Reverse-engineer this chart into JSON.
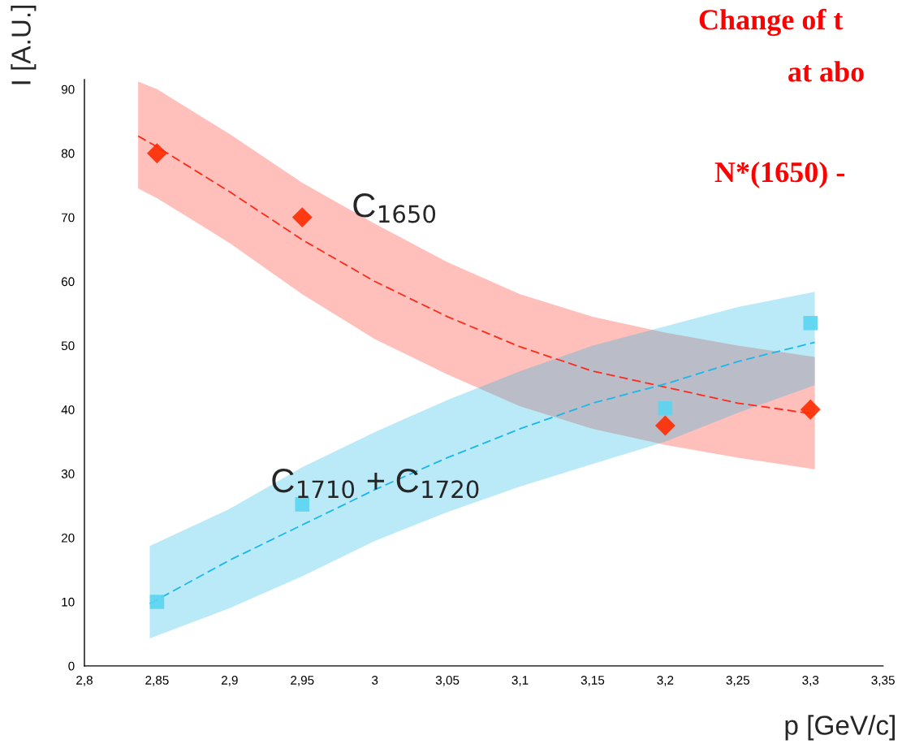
{
  "chart_data": {
    "type": "scatter",
    "xlabel": "p [GeV/c]",
    "ylabel": "I [A.U.]",
    "xlim": [
      2.8,
      3.35
    ],
    "xticks": [
      {
        "value": 2.8,
        "label": "2,8"
      },
      {
        "value": 2.85,
        "label": "2,85"
      },
      {
        "value": 2.9,
        "label": "2,9"
      },
      {
        "value": 2.95,
        "label": "2,95"
      },
      3,
      {
        "value": 3.05,
        "label": "3,05"
      },
      {
        "value": 3.1,
        "label": "3,1"
      },
      {
        "value": 3.15,
        "label": "3,15"
      },
      {
        "value": 3.2,
        "label": "3,2"
      },
      {
        "value": 3.25,
        "label": "3,25"
      },
      {
        "value": 3.3,
        "label": "3,3"
      },
      {
        "value": 3.35,
        "label": "3,35"
      }
    ],
    "ylim": [
      0,
      91.5
    ],
    "yticks": [
      0,
      10,
      20,
      30,
      40,
      50,
      60,
      70,
      80,
      90
    ],
    "grid": false,
    "legend": false,
    "series": [
      {
        "type": "line",
        "color": "#ff2a1a",
        "line_style": "dashed",
        "x": [
          2.837,
          2.85,
          2.9,
          2.95,
          3.0,
          3.05,
          3.1,
          3.15,
          3.2,
          3.25,
          3.303
        ],
        "values": [
          82.7,
          81,
          74,
          66.5,
          60,
          54.5,
          49.8,
          46,
          43.5,
          41,
          39.3
        ],
        "lower": [
          74.5,
          73,
          66,
          58,
          51,
          45.5,
          40.5,
          37,
          34.5,
          32.5,
          30.7
        ],
        "upper": [
          91.2,
          90,
          83,
          75.4,
          69,
          63,
          58,
          54.5,
          52,
          50,
          48.2
        ]
      },
      {
        "type": "line",
        "color": "#1ab8e8",
        "line_style": "dashed",
        "x": [
          2.845,
          2.9,
          2.95,
          3.0,
          3.05,
          3.1,
          3.15,
          3.2,
          3.25,
          3.303
        ],
        "values": [
          9.7,
          16.5,
          22,
          27.5,
          32.5,
          37,
          41,
          44,
          47.5,
          50.5
        ],
        "lower": [
          4.3,
          9,
          14,
          19.5,
          24,
          28,
          31.5,
          35,
          39.5,
          43.8
        ],
        "upper": [
          18.7,
          24.5,
          31,
          36.5,
          41.5,
          46,
          50,
          53,
          56,
          58.4
        ]
      },
      {
        "color": "#ff2a00",
        "marker": "diamond",
        "x": [
          2.85,
          2.95,
          3.2,
          3.3
        ],
        "values": [
          80,
          70,
          37.5,
          40
        ]
      },
      {
        "color": "#5ad4f0",
        "marker": "square",
        "x": [
          2.85,
          2.95,
          3.2,
          3.3
        ],
        "values": [
          10,
          25.2,
          40.2,
          53.5
        ]
      }
    ],
    "annotations": [
      "C$_{1650}$",
      "C$_{1710}$ + C$_{1720}$",
      "Change of t",
      "at abo",
      "N*(1650) -"
    ]
  }
}
